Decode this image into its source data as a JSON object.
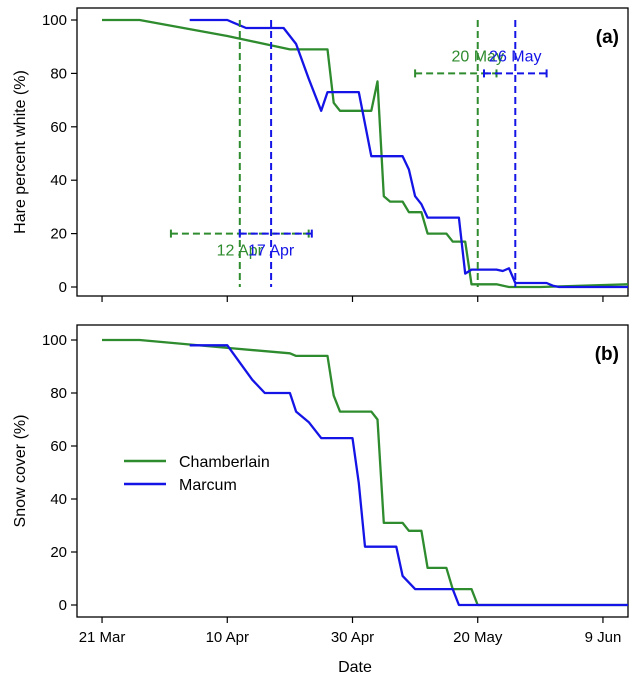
{
  "colors": {
    "Chamberlain": "#2e8b2e",
    "Marcum": "#1414e6"
  },
  "xlabel": "Date",
  "x_ticks": [
    {
      "day": 0,
      "label": "21 Mar"
    },
    {
      "day": 20,
      "label": "10 Apr"
    },
    {
      "day": 40,
      "label": "30 Apr"
    },
    {
      "day": 60,
      "label": "20 May"
    },
    {
      "day": 80,
      "label": "9 Jun"
    }
  ],
  "legend": {
    "placement": "center-left of panel (b)",
    "entries": [
      "Chamberlain",
      "Marcum"
    ]
  },
  "chart_data": [
    {
      "type": "line",
      "panel": "(a)",
      "ylabel": "Hare percent white (%)",
      "ylim": [
        0,
        100
      ],
      "yticks": [
        0,
        20,
        40,
        60,
        80,
        100
      ],
      "xlim": [
        -4,
        84
      ],
      "x_unit": "days since 21 Mar",
      "series": [
        {
          "name": "Chamberlain",
          "points": [
            [
              0,
              100
            ],
            [
              6,
              100
            ],
            [
              20,
              94
            ],
            [
              30,
              89
            ],
            [
              36,
              89
            ],
            [
              37,
              69
            ],
            [
              38,
              66
            ],
            [
              43,
              66
            ],
            [
              44,
              77
            ],
            [
              45,
              34
            ],
            [
              46,
              32
            ],
            [
              48,
              32
            ],
            [
              49,
              28
            ],
            [
              51,
              28
            ],
            [
              52,
              20
            ],
            [
              55,
              20
            ],
            [
              56,
              17
            ],
            [
              58,
              17
            ],
            [
              59,
              1
            ],
            [
              63,
              1
            ],
            [
              65,
              0
            ],
            [
              70,
              0
            ],
            [
              84,
              1
            ]
          ]
        },
        {
          "name": "Marcum",
          "points": [
            [
              14,
              100
            ],
            [
              20,
              100
            ],
            [
              21,
              99
            ],
            [
              23,
              97
            ],
            [
              29,
              97
            ],
            [
              31,
              91
            ],
            [
              33,
              78
            ],
            [
              35,
              66
            ],
            [
              36,
              73
            ],
            [
              41,
              73
            ],
            [
              43,
              49
            ],
            [
              48,
              49
            ],
            [
              49,
              44
            ],
            [
              50,
              34
            ],
            [
              51,
              31
            ],
            [
              52,
              26
            ],
            [
              57,
              26
            ],
            [
              58,
              5
            ],
            [
              59,
              6.5
            ],
            [
              63,
              6.5
            ],
            [
              64,
              6
            ],
            [
              65,
              7
            ],
            [
              66,
              1.5
            ],
            [
              71,
              1.5
            ],
            [
              72,
              0.5
            ],
            [
              73,
              0
            ],
            [
              84,
              0
            ]
          ]
        }
      ],
      "annotations": [
        {
          "series": "Chamberlain",
          "label": "12 Apr",
          "date": 22,
          "ci": [
            11,
            33
          ],
          "y": 20
        },
        {
          "series": "Marcum",
          "label": "17 Apr",
          "date": 27,
          "ci": [
            22,
            33.5
          ],
          "y": 20
        },
        {
          "series": "Chamberlain",
          "label": "20 May",
          "date": 60,
          "ci": [
            50,
            63
          ],
          "y": 80
        },
        {
          "series": "Marcum",
          "label": "26 May",
          "date": 66,
          "ci": [
            61,
            71
          ],
          "y": 80
        }
      ]
    },
    {
      "type": "line",
      "panel": "(b)",
      "ylabel": "Snow cover (%)",
      "ylim": [
        0,
        100
      ],
      "yticks": [
        0,
        20,
        40,
        60,
        80,
        100
      ],
      "xlim": [
        -4,
        84
      ],
      "x_unit": "days since 21 Mar",
      "series": [
        {
          "name": "Chamberlain",
          "points": [
            [
              0,
              100
            ],
            [
              6,
              100
            ],
            [
              20,
              97
            ],
            [
              30,
              95
            ],
            [
              31,
              94
            ],
            [
              36,
              94
            ],
            [
              37,
              79
            ],
            [
              38,
              73
            ],
            [
              43,
              73
            ],
            [
              44,
              70
            ],
            [
              45,
              31
            ],
            [
              48,
              31
            ],
            [
              49,
              28
            ],
            [
              51,
              28
            ],
            [
              52,
              14
            ],
            [
              55,
              14
            ],
            [
              56,
              6
            ],
            [
              59,
              6
            ],
            [
              60,
              0
            ],
            [
              84,
              0
            ]
          ]
        },
        {
          "name": "Marcum",
          "points": [
            [
              14,
              98
            ],
            [
              20,
              98
            ],
            [
              24,
              85
            ],
            [
              26,
              80
            ],
            [
              30,
              80
            ],
            [
              31,
              73
            ],
            [
              33,
              69
            ],
            [
              35,
              63
            ],
            [
              40,
              63
            ],
            [
              41,
              46
            ],
            [
              42,
              22
            ],
            [
              47,
              22
            ],
            [
              48,
              11
            ],
            [
              50,
              6
            ],
            [
              56,
              6
            ],
            [
              57,
              0
            ],
            [
              84,
              0
            ]
          ]
        }
      ]
    }
  ]
}
